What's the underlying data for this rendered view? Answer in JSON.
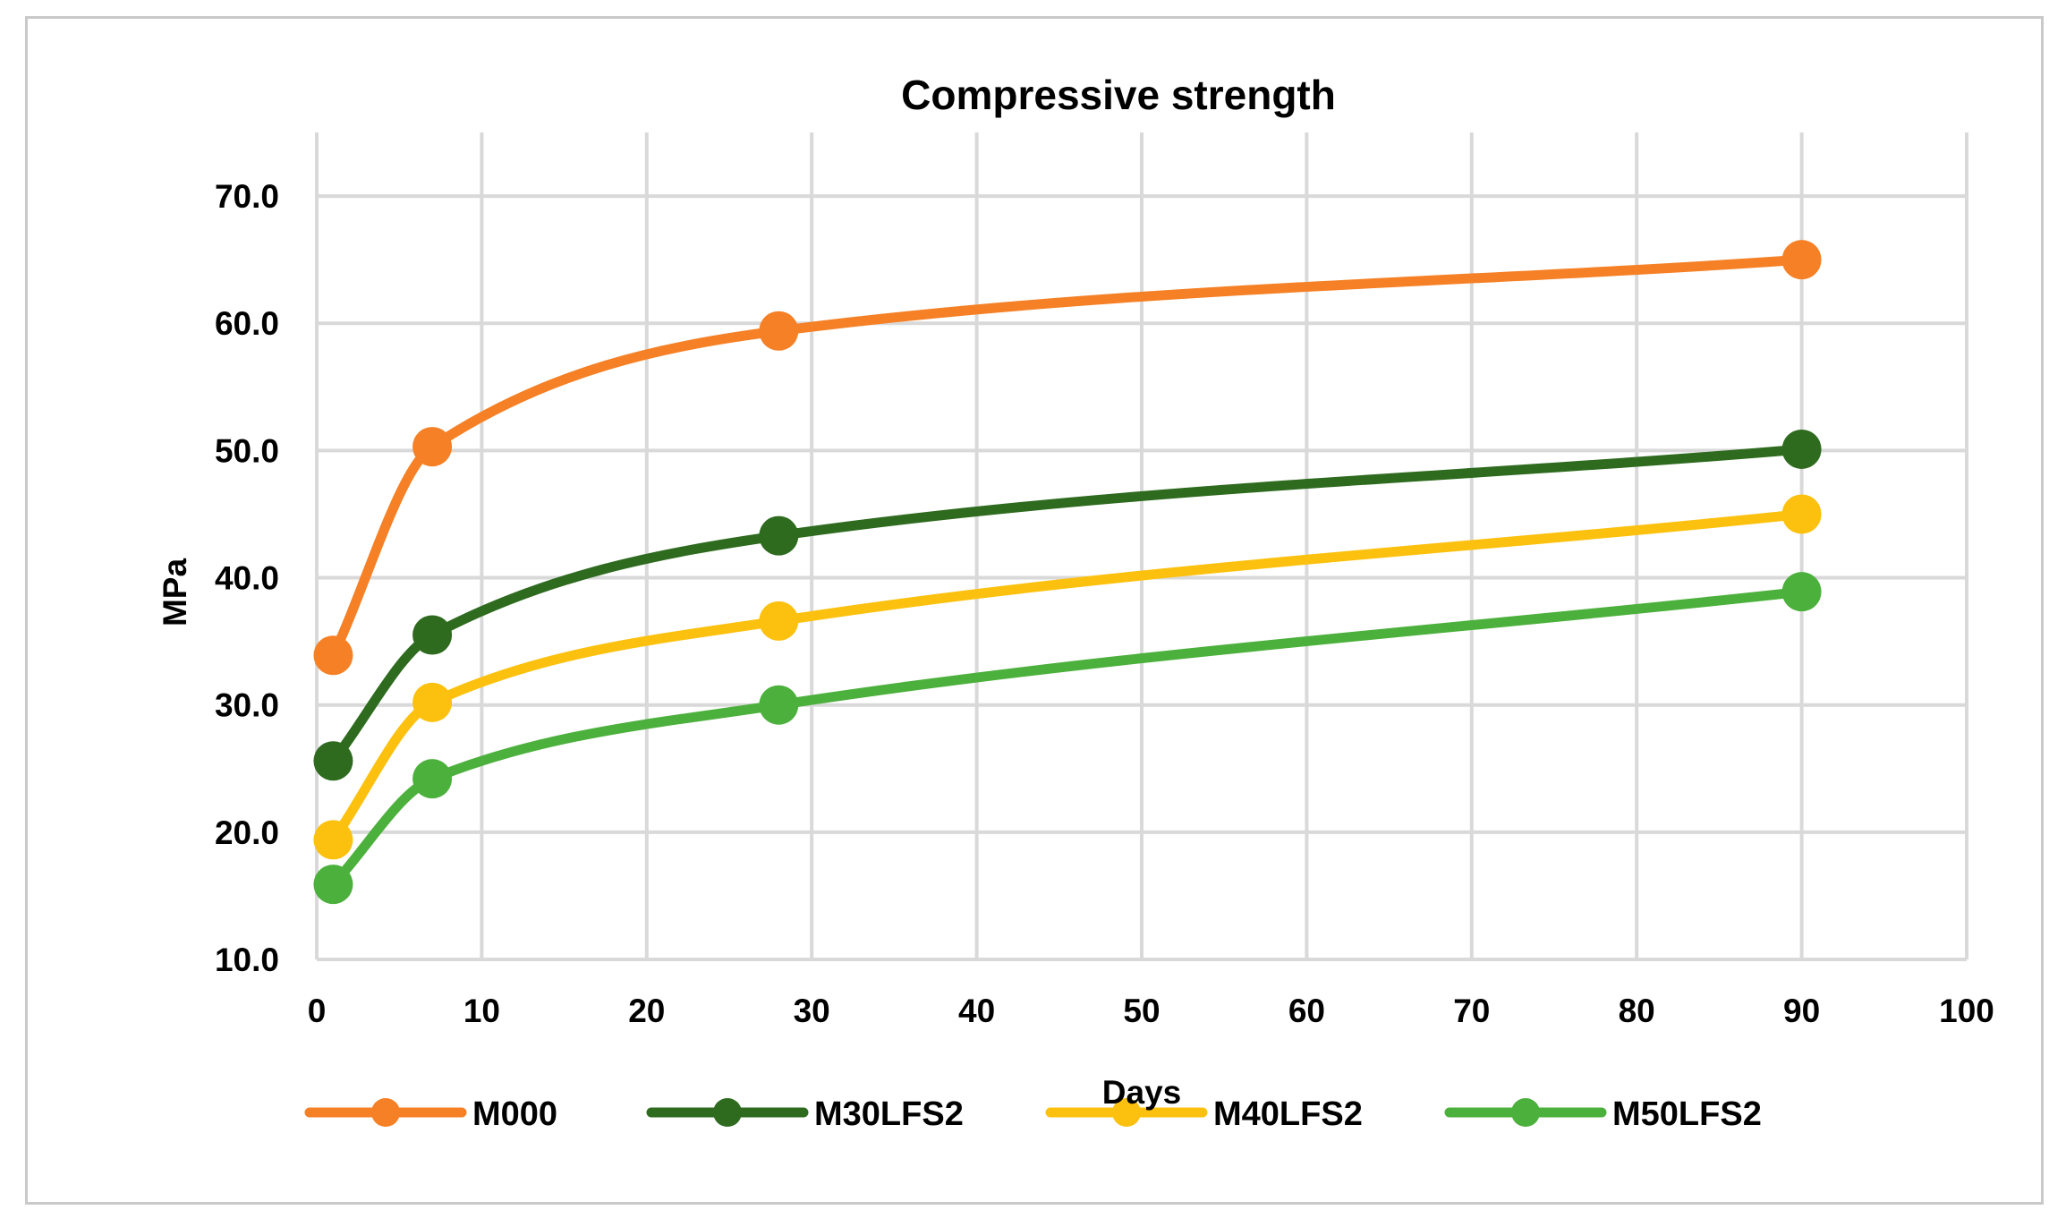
{
  "chart_data": {
    "type": "line",
    "title": "Compressive strength",
    "xlabel": "Days",
    "ylabel": "MPa",
    "xlim": [
      0,
      100
    ],
    "ylim": [
      10,
      75
    ],
    "x_ticks": [
      0,
      10,
      20,
      30,
      40,
      50,
      60,
      70,
      80,
      90,
      100
    ],
    "x_tick_labels": [
      "0",
      "10",
      "20",
      "30",
      "40",
      "50",
      "60",
      "70",
      "80",
      "90",
      "100"
    ],
    "y_ticks": [
      10,
      20,
      30,
      40,
      50,
      60,
      70
    ],
    "y_tick_labels": [
      "10.0",
      "20.0",
      "30.0",
      "40.0",
      "50.0",
      "60.0",
      "70.0"
    ],
    "grid": true,
    "smooth": true,
    "legend_position": "bottom",
    "x": [
      1,
      7,
      28,
      90
    ],
    "series": [
      {
        "name": "M000",
        "color": "#f58025",
        "values": [
          33.9,
          50.3,
          59.4,
          65.0
        ]
      },
      {
        "name": "M30LFS2",
        "color": "#2e6b1f",
        "values": [
          25.6,
          35.5,
          43.3,
          50.1
        ]
      },
      {
        "name": "M40LFS2",
        "color": "#fcc10f",
        "values": [
          19.4,
          30.2,
          36.6,
          45.0
        ]
      },
      {
        "name": "M50LFS2",
        "color": "#4cb03c",
        "values": [
          15.9,
          24.2,
          30.0,
          38.9
        ]
      }
    ]
  }
}
